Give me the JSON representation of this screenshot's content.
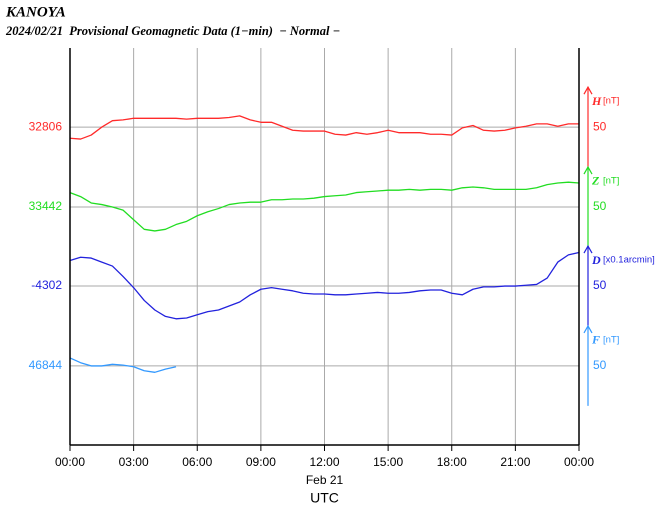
{
  "chart_data": {
    "type": "line",
    "title": "KANOYA",
    "subtitle": "2024/02/21  Provisional Geomagnetic Data (1−min)  − Normal −",
    "xlabel": "UTC",
    "date_label": "Feb 21",
    "xlim": [
      0,
      24
    ],
    "xticks": [
      {
        "value": 0,
        "label": "00:00"
      },
      {
        "value": 3,
        "label": "03:00"
      },
      {
        "value": 6,
        "label": "06:00"
      },
      {
        "value": 9,
        "label": "09:00"
      },
      {
        "value": 12,
        "label": "12:00"
      },
      {
        "value": 15,
        "label": "15:00"
      },
      {
        "value": 18,
        "label": "18:00"
      },
      {
        "value": 21,
        "label": "21:00"
      },
      {
        "value": 24,
        "label": "00:00"
      }
    ],
    "grid": true,
    "x": [
      0,
      0.5,
      1,
      1.5,
      2,
      2.5,
      3,
      3.5,
      4,
      4.5,
      5,
      5.5,
      6,
      6.5,
      7,
      7.5,
      8,
      8.5,
      9,
      9.5,
      10,
      10.5,
      11,
      11.5,
      12,
      12.5,
      13,
      13.5,
      14,
      14.5,
      15,
      15.5,
      16,
      16.5,
      17,
      17.5,
      18,
      18.5,
      19,
      19.5,
      20,
      20.5,
      21,
      21.5,
      22,
      22.5,
      23,
      23.5,
      24
    ],
    "series": [
      {
        "name": "H",
        "unit": "[nT]",
        "color": "#ff2a2a",
        "ylim": [
          32408,
          32905
        ],
        "yticks": [
          32806
        ],
        "scale": 50,
        "values": [
          32792,
          32791,
          32796,
          32806,
          32814,
          32815,
          32817,
          32817,
          32817,
          32817,
          32817,
          32816,
          32817,
          32817,
          32817,
          32818,
          32820,
          32815,
          32812,
          32812,
          32807,
          32802,
          32801,
          32801,
          32801,
          32797,
          32796,
          32799,
          32797,
          32799,
          32802,
          32799,
          32799,
          32799,
          32797,
          32797,
          32796,
          32805,
          32808,
          32802,
          32801,
          32802,
          32805,
          32807,
          32810,
          32810,
          32807,
          32810,
          32810
        ]
      },
      {
        "name": "Z",
        "unit": "[nT]",
        "color": "#22dd22",
        "ylim": [
          33144,
          33641
        ],
        "yticks": [
          33442
        ],
        "scale": 50,
        "values": [
          33460,
          33455,
          33447,
          33445,
          33442,
          33438,
          33426,
          33414,
          33412,
          33414,
          33420,
          33424,
          33431,
          33436,
          33440,
          33445,
          33447,
          33448,
          33448,
          33451,
          33451,
          33452,
          33452,
          33453,
          33455,
          33456,
          33457,
          33460,
          33461,
          33462,
          33463,
          33463,
          33464,
          33463,
          33464,
          33464,
          33463,
          33466,
          33467,
          33466,
          33464,
          33464,
          33464,
          33464,
          33466,
          33470,
          33472,
          33473,
          33472
        ]
      },
      {
        "name": "D",
        "unit": "[x0.1arcmin]",
        "color": "#2222dd",
        "ylim": [
          -4501,
          -4004
        ],
        "yticks": [
          -4302
        ],
        "scale": 50,
        "values": [
          -4270,
          -4266,
          -4267,
          -4272,
          -4277,
          -4290,
          -4304,
          -4320,
          -4332,
          -4340,
          -4343,
          -4342,
          -4338,
          -4334,
          -4332,
          -4327,
          -4322,
          -4313,
          -4306,
          -4304,
          -4306,
          -4308,
          -4311,
          -4312,
          -4312,
          -4313,
          -4313,
          -4312,
          -4311,
          -4310,
          -4311,
          -4311,
          -4310,
          -4308,
          -4307,
          -4307,
          -4311,
          -4313,
          -4306,
          -4303,
          -4303,
          -4302,
          -4302,
          -4301,
          -4300,
          -4292,
          -4272,
          -4263,
          -4260
        ]
      },
      {
        "name": "F",
        "unit": "[nT]",
        "color": "#3399ff",
        "ylim": [
          46745,
          47242
        ],
        "yticks": [
          46844
        ],
        "scale": 50,
        "values": [
          46854,
          46848,
          46844,
          46844,
          46846,
          46845,
          46843,
          46838,
          46836,
          46840,
          46843,
          null,
          null,
          null,
          null,
          null,
          null,
          null,
          null,
          null,
          null,
          null,
          null,
          null,
          null,
          null,
          null,
          null,
          null,
          null,
          null,
          null,
          null,
          null,
          null,
          null,
          null,
          null,
          null,
          null,
          null,
          null,
          null,
          null,
          null,
          null,
          null,
          null,
          null
        ]
      }
    ]
  }
}
